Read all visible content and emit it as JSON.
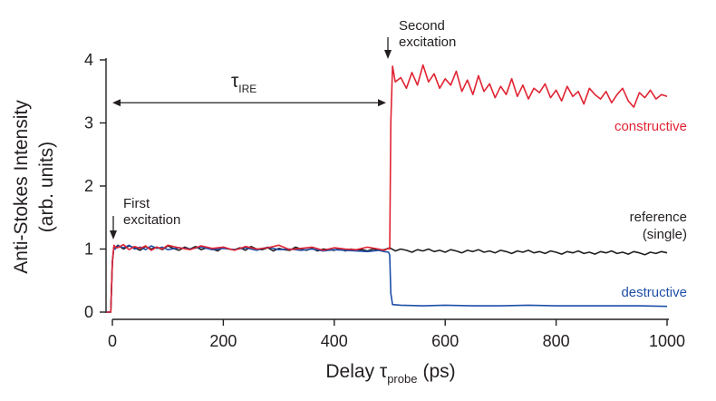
{
  "chart_data": {
    "type": "line",
    "xlabel": {
      "main": "Delay τ",
      "sub": "probe",
      "unit": "(ps)"
    },
    "ylabel": {
      "line1": "Anti-Stokes Intensity",
      "line2": "(arb. units)"
    },
    "xlim": [
      -10,
      1000
    ],
    "ylim": [
      0,
      4
    ],
    "xticks": [
      0,
      200,
      400,
      600,
      800,
      1000
    ],
    "yticks": [
      0,
      1,
      2,
      3,
      4
    ],
    "grid": false,
    "annotations": {
      "first_excitation": {
        "line1": "First",
        "line2": "excitation",
        "x": 0
      },
      "second_excitation": {
        "line1": "Second",
        "line2": "excitation",
        "x": 500
      },
      "tau_ire": {
        "symbol": "τ",
        "sub": "IRE",
        "x_start": 0,
        "x_end": 500,
        "y": 3.32
      }
    },
    "series": [
      {
        "name": "reference (single)",
        "label_lines": [
          "reference",
          "(single)"
        ],
        "color": "#231f20",
        "x": [
          -10,
          -3,
          0,
          3,
          5,
          10,
          20,
          30,
          40,
          50,
          60,
          70,
          80,
          90,
          100,
          110,
          120,
          130,
          140,
          150,
          160,
          170,
          180,
          190,
          200,
          210,
          220,
          230,
          240,
          250,
          260,
          270,
          280,
          290,
          300,
          310,
          320,
          330,
          340,
          350,
          360,
          370,
          380,
          390,
          400,
          410,
          420,
          430,
          440,
          450,
          460,
          470,
          480,
          490,
          500,
          510,
          520,
          530,
          540,
          550,
          560,
          570,
          580,
          590,
          600,
          610,
          620,
          630,
          640,
          650,
          660,
          670,
          680,
          690,
          700,
          710,
          720,
          730,
          740,
          750,
          760,
          770,
          780,
          790,
          800,
          810,
          820,
          830,
          840,
          850,
          860,
          870,
          880,
          890,
          900,
          910,
          920,
          930,
          940,
          950,
          960,
          970,
          980,
          990,
          1000
        ],
        "values": [
          0,
          0,
          0.8,
          1.05,
          1.02,
          1.06,
          1.0,
          1.05,
          1.02,
          0.98,
          1.04,
          1.0,
          1.03,
          0.99,
          1.05,
          1.01,
          0.98,
          1.03,
          1.0,
          1.04,
          0.99,
          1.02,
          1.0,
          0.97,
          1.03,
          1.0,
          0.99,
          1.02,
          0.98,
          1.04,
          1.0,
          0.99,
          1.02,
          0.97,
          1.01,
          0.99,
          0.98,
          1.03,
          1.0,
          0.98,
          1.01,
          0.97,
          1.0,
          0.99,
          0.98,
          1.01,
          0.97,
          1.0,
          0.98,
          0.99,
          0.97,
          1.0,
          0.98,
          0.99,
          1.02,
          0.97,
          1.0,
          0.98,
          0.95,
          0.99,
          0.97,
          1.0,
          0.96,
          0.98,
          0.95,
          0.99,
          0.97,
          0.94,
          0.98,
          0.96,
          0.99,
          0.95,
          0.97,
          0.94,
          0.98,
          0.96,
          0.93,
          0.97,
          0.95,
          0.98,
          0.94,
          0.96,
          0.93,
          0.97,
          0.95,
          0.92,
          0.96,
          0.94,
          0.97,
          0.93,
          0.95,
          0.92,
          0.96,
          0.94,
          0.97,
          0.93,
          0.95,
          0.92,
          0.96,
          0.94,
          0.91,
          0.95,
          0.93,
          0.96,
          0.94
        ]
      },
      {
        "name": "destructive",
        "label_lines": [
          "destructive"
        ],
        "color": "#1f4fa8",
        "x": [
          -10,
          -3,
          0,
          3,
          5,
          10,
          20,
          30,
          40,
          50,
          60,
          70,
          80,
          90,
          100,
          120,
          140,
          160,
          180,
          200,
          220,
          240,
          260,
          280,
          300,
          320,
          340,
          360,
          380,
          400,
          420,
          440,
          460,
          480,
          490,
          498,
          500,
          502,
          505,
          520,
          560,
          600,
          650,
          700,
          750,
          800,
          850,
          900,
          950,
          1000
        ],
        "values": [
          0,
          0,
          0.8,
          1.04,
          1.0,
          1.05,
          1.02,
          1.06,
          1.0,
          1.03,
          0.99,
          1.05,
          1.01,
          1.03,
          0.99,
          1.02,
          1.0,
          1.03,
          0.99,
          1.01,
          0.99,
          1.02,
          0.98,
          1.03,
          0.99,
          1.0,
          0.98,
          1.0,
          0.97,
          0.99,
          0.98,
          0.97,
          0.96,
          0.98,
          0.96,
          0.95,
          0.9,
          0.3,
          0.12,
          0.11,
          0.1,
          0.11,
          0.1,
          0.1,
          0.11,
          0.1,
          0.1,
          0.1,
          0.1,
          0.09
        ]
      },
      {
        "name": "constructive",
        "label_lines": [
          "constructive"
        ],
        "color": "#e02433",
        "x": [
          -10,
          -3,
          0,
          3,
          5,
          10,
          20,
          30,
          40,
          50,
          60,
          70,
          80,
          90,
          100,
          120,
          140,
          160,
          180,
          200,
          220,
          240,
          260,
          280,
          300,
          320,
          340,
          360,
          380,
          400,
          420,
          440,
          460,
          480,
          490,
          498,
          500,
          502,
          505,
          510,
          520,
          530,
          540,
          550,
          560,
          570,
          580,
          590,
          600,
          610,
          620,
          630,
          640,
          650,
          660,
          670,
          680,
          690,
          700,
          710,
          720,
          730,
          740,
          750,
          760,
          770,
          780,
          790,
          800,
          810,
          820,
          830,
          840,
          850,
          860,
          870,
          880,
          890,
          900,
          910,
          920,
          930,
          940,
          950,
          960,
          970,
          980,
          990,
          1000
        ],
        "values": [
          0,
          0,
          0.8,
          1.06,
          1.03,
          1.02,
          1.07,
          0.99,
          1.04,
          1.01,
          1.05,
          0.98,
          1.03,
          1.0,
          1.06,
          1.02,
          0.99,
          1.05,
          1.01,
          1.03,
          0.98,
          1.04,
          1.0,
          1.02,
          1.06,
          0.99,
          1.01,
          1.03,
          0.98,
          1.02,
          1.0,
          0.99,
          1.03,
          1.0,
          0.98,
          1.01,
          1.0,
          3.0,
          3.9,
          3.65,
          3.72,
          3.55,
          3.8,
          3.6,
          3.92,
          3.65,
          3.78,
          3.55,
          3.7,
          3.6,
          3.82,
          3.5,
          3.68,
          3.45,
          3.75,
          3.5,
          3.62,
          3.4,
          3.58,
          3.45,
          3.7,
          3.42,
          3.6,
          3.38,
          3.55,
          3.48,
          3.62,
          3.4,
          3.52,
          3.35,
          3.58,
          3.42,
          3.5,
          3.3,
          3.55,
          3.45,
          3.38,
          3.5,
          3.32,
          3.45,
          3.55,
          3.35,
          3.25,
          3.48,
          3.4,
          3.52,
          3.38,
          3.45,
          3.42
        ]
      }
    ]
  }
}
